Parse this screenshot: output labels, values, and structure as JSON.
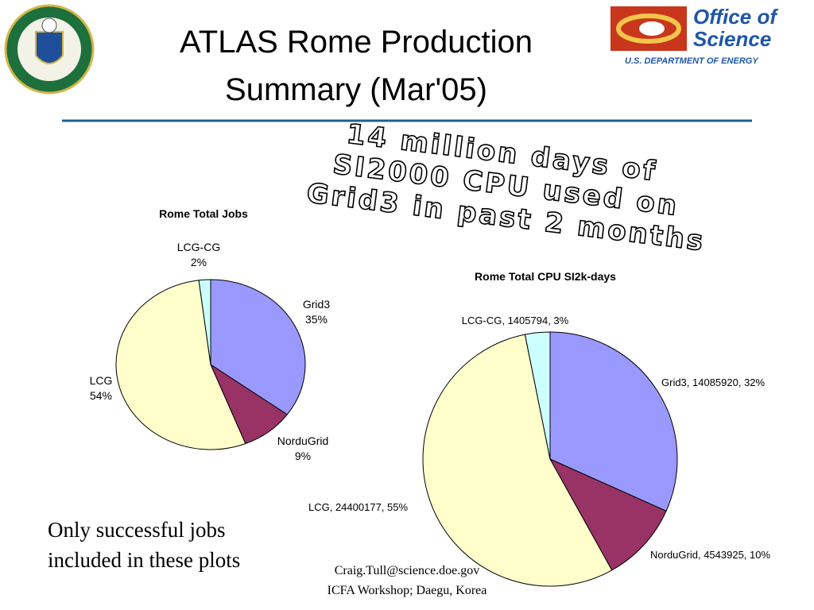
{
  "slide": {
    "title": [
      "ATLAS Rome Production",
      "Summary (Mar'05)"
    ],
    "logo_text": {
      "name": [
        "Office of",
        "Science"
      ],
      "department": "U.S. DEPARTMENT OF ENERGY"
    },
    "callout": [
      "14 million days of",
      "SI2000 CPU used on",
      "Grid3 in past 2 months"
    ],
    "note": [
      "Only successful jobs",
      "included in these plots"
    ],
    "footer": [
      "Craig.Tull@science.doe.gov",
      "ICFA Workshop; Daegu, Korea"
    ]
  },
  "chart_data": [
    {
      "type": "pie",
      "title": "Rome Total Jobs",
      "categories": [
        "Grid3",
        "NorduGrid",
        "LCG",
        "LCG-CG"
      ],
      "values": [
        35,
        9,
        54,
        2
      ],
      "value_labels": [
        "35%",
        "9%",
        "54%",
        "2%"
      ],
      "colors": [
        "#9999ff",
        "#993366",
        "#ffffcc",
        "#ccffff"
      ]
    },
    {
      "type": "pie",
      "title": "Rome Total CPU SI2k-days",
      "values": [
        14085920,
        4543925,
        24400177,
        1405794
      ],
      "value_labels": [
        "Grid3, 14085920, 32%",
        "NorduGrid, 4543925, 10%",
        "LCG, 24400177, 55%",
        "LCG-CG, 1405794, 3%"
      ],
      "colors": [
        "#9999ff",
        "#993366",
        "#ffffcc",
        "#ccffff"
      ]
    }
  ]
}
